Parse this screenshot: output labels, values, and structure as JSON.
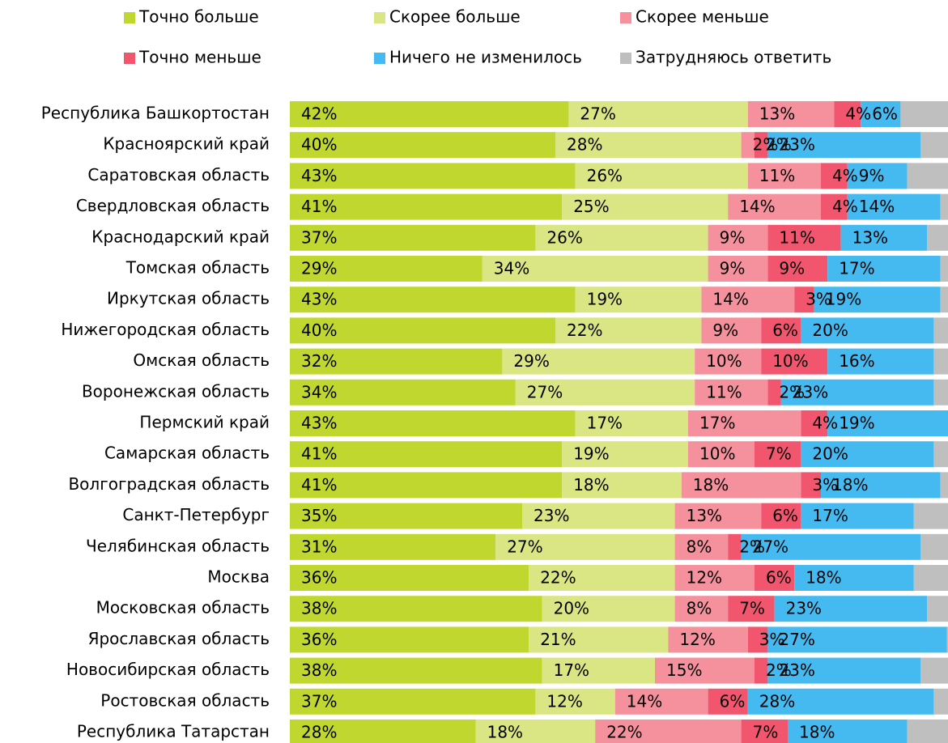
{
  "chart_data": {
    "type": "stacked_bar_horizontal",
    "categories": [
      "Республика Башкортостан",
      "Красноярский край",
      "Саратовская область",
      "Свердловская область",
      "Краснодарский край",
      "Томская область",
      "Иркутская область",
      "Нижегородская область",
      "Омская область",
      "Воронежская область",
      "Пермский край",
      "Самарская область",
      "Волгоградская область",
      "Санкт-Петербург",
      "Челябинская область",
      "Москва",
      "Московская область",
      "Ярославская область",
      "Новосибирская область",
      "Ростовская область",
      "Республика Татарстан"
    ],
    "series": [
      {
        "name": "Точно больше",
        "color": "#c0d72f",
        "values": [
          42,
          40,
          43,
          41,
          37,
          29,
          43,
          40,
          32,
          34,
          43,
          41,
          41,
          35,
          31,
          36,
          38,
          36,
          38,
          37,
          28
        ],
        "value_labels": [
          "42%",
          "40%",
          "43%",
          "41%",
          "37%",
          "29%",
          "43%",
          "40%",
          "32%",
          "34%",
          "43%",
          "41%",
          "41%",
          "35%",
          "31%",
          "36%",
          "38%",
          "36%",
          "38%",
          "37%",
          "28%"
        ]
      },
      {
        "name": "Скорее больше",
        "color": "#dae583",
        "values": [
          27,
          28,
          26,
          25,
          26,
          34,
          19,
          22,
          29,
          27,
          17,
          19,
          18,
          23,
          27,
          22,
          20,
          21,
          17,
          12,
          18
        ],
        "value_labels": [
          "27%",
          "28%",
          "26%",
          "25%",
          "26%",
          "34%",
          "19%",
          "22%",
          "29%",
          "27%",
          "17%",
          "19%",
          "18%",
          "23%",
          "27%",
          "22%",
          "20%",
          "21%",
          "17%",
          "12%",
          "18%"
        ]
      },
      {
        "name": "Скорее меньше",
        "color": "#f4919d",
        "values": [
          13,
          2,
          11,
          14,
          9,
          9,
          14,
          9,
          10,
          11,
          17,
          10,
          18,
          13,
          8,
          12,
          8,
          12,
          15,
          14,
          22
        ],
        "value_labels": [
          "13%",
          "2%",
          "11%",
          "14%",
          "9%",
          "9%",
          "14%",
          "9%",
          "10%",
          "11%",
          "17%",
          "10%",
          "18%",
          "13%",
          "8%",
          "12%",
          "8%",
          "12%",
          "15%",
          "14%",
          "22%"
        ]
      },
      {
        "name": "Точно меньше",
        "color": "#f2566e",
        "values": [
          4,
          2,
          4,
          4,
          11,
          9,
          3,
          6,
          10,
          2,
          4,
          7,
          3,
          6,
          2,
          6,
          7,
          3,
          2,
          6,
          7
        ],
        "value_labels": [
          "4%",
          "2%",
          "4%",
          "4%",
          "11%",
          "9%",
          "3%",
          "6%",
          "10%",
          "2%",
          "4%",
          "7%",
          "3%",
          "6%",
          "2%",
          "6%",
          "7%",
          "3%",
          "2%",
          "6%",
          "7%"
        ]
      },
      {
        "name": "Ничего не изменилось",
        "color": "#45baf0",
        "values": [
          6,
          23,
          9,
          14,
          13,
          17,
          19,
          20,
          16,
          23,
          19,
          20,
          18,
          17,
          27,
          18,
          23,
          27,
          23,
          28,
          18
        ],
        "value_labels": [
          "6%",
          "23%",
          "9%",
          "14%",
          "13%",
          "17%",
          "19%",
          "20%",
          "16%",
          "23%",
          "19%",
          "20%",
          "18%",
          "17%",
          "27%",
          "18%",
          "23%",
          "27%",
          "23%",
          "28%",
          "18%"
        ]
      },
      {
        "name": "Затрудняюсь ответить",
        "color": "#bfbfbf",
        "values": [
          8,
          5,
          7,
          2,
          4,
          2,
          2,
          3,
          3,
          3,
          0,
          3,
          2,
          6,
          5,
          6,
          4,
          1,
          5,
          3,
          7
        ]
      }
    ]
  }
}
